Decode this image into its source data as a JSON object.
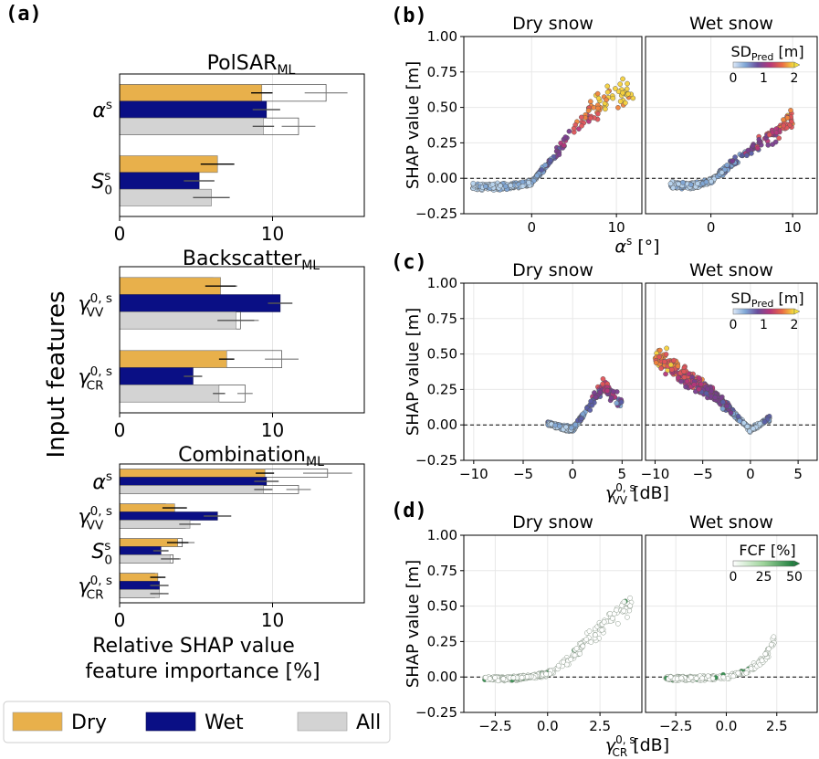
{
  "panel_labels": [
    "(a)",
    "(b)",
    "(c)",
    "(d)"
  ],
  "legend": {
    "items": [
      {
        "label": "Dry",
        "color": "#E8B04B"
      },
      {
        "label": "Wet",
        "color": "#0A0F85"
      },
      {
        "label": "All",
        "color": "#D3D3D3"
      }
    ]
  },
  "panel_a": {
    "ylabel": "Input features",
    "xlabel_line1": "Relative SHAP value",
    "xlabel_line2": "feature importance [%]",
    "xlim": [
      0,
      16
    ],
    "xticks": [
      0,
      10
    ],
    "colors": {
      "dry": "#E8B04B",
      "wet": "#0A0F85",
      "all": "#D3D3D3"
    },
    "models": [
      {
        "title": "PolSAR",
        "subscript": "ML",
        "features": [
          {
            "sym": "α",
            "sup": "s",
            "sub": "",
            "dry": {
              "v": 9.3,
              "err": 0.7,
              "ref": 13.5,
              "ref_err": 1.4
            },
            "wet": {
              "v": 9.6,
              "err": 0.9,
              "ref": 9.6,
              "ref_err": 0.9
            },
            "all": {
              "v": 9.4,
              "err": 0.7,
              "ref": 11.7,
              "ref_err": 1.1
            }
          },
          {
            "sym": "S",
            "sup": "s",
            "sub": "0",
            "dry": {
              "v": 6.4,
              "err": 1.1,
              "ref": 6.4,
              "ref_err": 1.1
            },
            "wet": {
              "v": 5.2,
              "err": 1.0,
              "ref": 5.2,
              "ref_err": 1.0
            },
            "all": {
              "v": 6.0,
              "err": 1.2,
              "ref": 6.0,
              "ref_err": 1.2
            }
          }
        ],
        "show_xticks": true
      },
      {
        "title": "Backscatter",
        "subscript": "ML",
        "features": [
          {
            "sym": "γ",
            "sup": "0, s",
            "sub": "VV",
            "dry": {
              "v": 6.6,
              "err": 1.0,
              "ref": 6.1,
              "ref_err": 1.6
            },
            "wet": {
              "v": 10.5,
              "err": 0.8,
              "ref": 10.5,
              "ref_err": 0.8
            },
            "all": {
              "v": 7.6,
              "err": 1.2,
              "ref": 7.9,
              "ref_err": 1.2
            }
          },
          {
            "sym": "γ",
            "sup": "0, s",
            "sub": "CR",
            "dry": {
              "v": 7.0,
              "err": 0.5,
              "ref": 10.6,
              "ref_err": 1.1
            },
            "wet": {
              "v": 4.8,
              "err": 0.6,
              "ref": 4.8,
              "ref_err": 0.6
            },
            "all": {
              "v": 6.5,
              "err": 0.4,
              "ref": 8.2,
              "ref_err": 0.5
            }
          }
        ],
        "show_xticks": true
      },
      {
        "title": "Combination",
        "subscript": "ML",
        "features": [
          {
            "sym": "α",
            "sup": "s",
            "sub": "",
            "dry": {
              "v": 9.5,
              "err": 0.6,
              "ref": 13.6,
              "ref_err": 1.6
            },
            "wet": {
              "v": 9.6,
              "err": 0.8,
              "ref": 9.6,
              "ref_err": 0.8
            },
            "all": {
              "v": 9.4,
              "err": 0.6,
              "ref": 11.7,
              "ref_err": 0.8
            }
          },
          {
            "sym": "γ",
            "sup": "0, s",
            "sub": "VV",
            "dry": {
              "v": 3.6,
              "err": 0.8,
              "ref": 3.0,
              "ref_err": 0.5
            },
            "wet": {
              "v": 6.4,
              "err": 0.9,
              "ref": 6.4,
              "ref_err": 0.9
            },
            "all": {
              "v": 4.6,
              "err": 0.7,
              "ref": 4.3,
              "ref_err": 0.6
            }
          },
          {
            "sym": "S",
            "sup": "s",
            "sub": "0",
            "dry": {
              "v": 3.8,
              "err": 0.7,
              "ref": 4.1,
              "ref_err": 0.8
            },
            "wet": {
              "v": 2.7,
              "err": 0.5,
              "ref": 2.7,
              "ref_err": 0.5
            },
            "all": {
              "v": 3.3,
              "err": 0.6,
              "ref": 3.5,
              "ref_err": 0.5
            }
          },
          {
            "sym": "γ",
            "sup": "0, s",
            "sub": "CR",
            "dry": {
              "v": 2.5,
              "err": 0.5,
              "ref": 2.3,
              "ref_err": 0.4
            },
            "wet": {
              "v": 2.6,
              "err": 0.6,
              "ref": 2.6,
              "ref_err": 0.6
            },
            "all": {
              "v": 2.6,
              "err": 0.6,
              "ref": 2.3,
              "ref_err": 0.5
            }
          }
        ],
        "show_xticks": true
      }
    ]
  },
  "scatter": {
    "ylabel": "SHAP value [m]",
    "ylim": [
      -0.25,
      1.0
    ],
    "yticks": [
      "−0.25",
      "0.00",
      "0.25",
      "0.50",
      "0.75",
      "1.00"
    ],
    "ytick_values": [
      -0.25,
      0.0,
      0.25,
      0.5,
      0.75,
      1.0
    ],
    "col_titles": [
      "Dry snow",
      "Wet snow"
    ],
    "rows": [
      {
        "id": "b",
        "xsym": "α",
        "xsup": "s",
        "xsub": "",
        "xunit": " [°]",
        "xlim": [
          -8,
          13
        ],
        "xticks": [
          0,
          10
        ],
        "xtick_labels": [
          "0",
          "10"
        ],
        "cbar": {
          "title_pre": "SD",
          "title_sub": "Pred",
          "title_post": " [m]",
          "ticks": [
            "0",
            "1",
            "2"
          ],
          "cmap": "plasma"
        },
        "trend": {
          "dry": [
            [
              -7,
              -0.06
            ],
            [
              -3,
              -0.06
            ],
            [
              0,
              -0.03
            ],
            [
              3,
              0.18
            ],
            [
              6,
              0.42
            ],
            [
              9,
              0.56
            ],
            [
              12,
              0.62
            ]
          ],
          "wet": [
            [
              -5,
              -0.05
            ],
            [
              -2,
              -0.05
            ],
            [
              0,
              -0.02
            ],
            [
              3,
              0.12
            ],
            [
              6,
              0.25
            ],
            [
              8,
              0.32
            ],
            [
              10,
              0.44
            ]
          ]
        }
      },
      {
        "id": "c",
        "xsym": "γ",
        "xsup": "0, s",
        "xsub": "VV",
        "xunit": " [dB]",
        "xlim": [
          -11,
          7
        ],
        "xticks": [
          -10,
          -5,
          0,
          5
        ],
        "xtick_labels": [
          "−10",
          "−5",
          "0",
          "5"
        ],
        "cbar": {
          "title_pre": "SD",
          "title_sub": "Pred",
          "title_post": " [m]",
          "ticks": [
            "0",
            "1",
            "2"
          ],
          "cmap": "plasma"
        },
        "trend": {
          "dry": [
            [
              -2.5,
              0.01
            ],
            [
              -1,
              -0.02
            ],
            [
              0,
              -0.03
            ],
            [
              1,
              0.06
            ],
            [
              2,
              0.17
            ],
            [
              3,
              0.28
            ],
            [
              5,
              0.15
            ]
          ],
          "wet": [
            [
              -10,
              0.48
            ],
            [
              -8,
              0.4
            ],
            [
              -6,
              0.3
            ],
            [
              -4,
              0.22
            ],
            [
              -2,
              0.1
            ],
            [
              0,
              -0.04
            ],
            [
              2,
              0.05
            ]
          ]
        }
      },
      {
        "id": "d",
        "xsym": "γ",
        "xsup": "0, s",
        "xsub": "CR",
        "xunit": " [dB]",
        "xlim": [
          -4,
          4.5
        ],
        "xticks": [
          -2.5,
          0,
          2.5
        ],
        "xtick_labels": [
          "−2.5",
          "0.0",
          "2.5"
        ],
        "cbar": {
          "title_pre": "FCF [%]",
          "title_sub": "",
          "title_post": "",
          "ticks": [
            "0",
            "25",
            "50"
          ],
          "cmap": "greens"
        },
        "trend": {
          "dry": [
            [
              -3,
              -0.01
            ],
            [
              -1.5,
              -0.01
            ],
            [
              0,
              0.02
            ],
            [
              1,
              0.12
            ],
            [
              2,
              0.28
            ],
            [
              3,
              0.42
            ],
            [
              4,
              0.55
            ]
          ],
          "wet": [
            [
              -3,
              -0.01
            ],
            [
              -1.5,
              -0.01
            ],
            [
              0,
              0.0
            ],
            [
              1,
              0.04
            ],
            [
              1.8,
              0.12
            ],
            [
              2.5,
              0.28
            ]
          ]
        }
      }
    ]
  }
}
